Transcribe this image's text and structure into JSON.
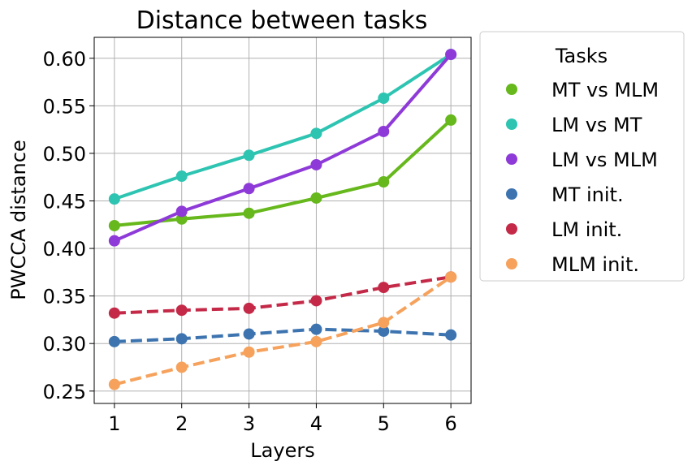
{
  "chart_data": {
    "type": "line",
    "title": "Distance between tasks",
    "xlabel": "Layers",
    "ylabel": "PWCCA distance",
    "x": [
      1,
      2,
      3,
      4,
      5,
      6
    ],
    "xticks": [
      "1",
      "2",
      "3",
      "4",
      "5",
      "6"
    ],
    "yticks": [
      "0.25",
      "0.30",
      "0.35",
      "0.40",
      "0.45",
      "0.50",
      "0.55",
      "0.60"
    ],
    "xlim": [
      0.7,
      6.3
    ],
    "ylim": [
      0.237,
      0.622
    ],
    "grid": true,
    "legend": {
      "title": "Tasks",
      "placement": "outside-right"
    },
    "series": [
      {
        "name": "MT vs MLM",
        "color": "#66b81c",
        "style": "solid",
        "values": [
          0.424,
          0.431,
          0.437,
          0.453,
          0.47,
          0.535
        ]
      },
      {
        "name": "LM vs MT",
        "color": "#2ec4b2",
        "style": "solid",
        "values": [
          0.452,
          0.476,
          0.498,
          0.521,
          0.558,
          0.604
        ]
      },
      {
        "name": "LM vs MLM",
        "color": "#8e3ad8",
        "style": "solid",
        "values": [
          0.408,
          0.439,
          0.463,
          0.488,
          0.523,
          0.604
        ]
      },
      {
        "name": "MT init.",
        "color": "#3d74b0",
        "style": "dashed",
        "values": [
          0.302,
          0.305,
          0.31,
          0.315,
          0.313,
          0.309
        ]
      },
      {
        "name": "LM init.",
        "color": "#c42a48",
        "style": "dashed",
        "values": [
          0.332,
          0.335,
          0.337,
          0.345,
          0.359,
          0.37
        ]
      },
      {
        "name": "MLM init.",
        "color": "#f6a25c",
        "style": "dashed",
        "values": [
          0.257,
          0.275,
          0.291,
          0.302,
          0.322,
          0.37
        ]
      }
    ]
  }
}
